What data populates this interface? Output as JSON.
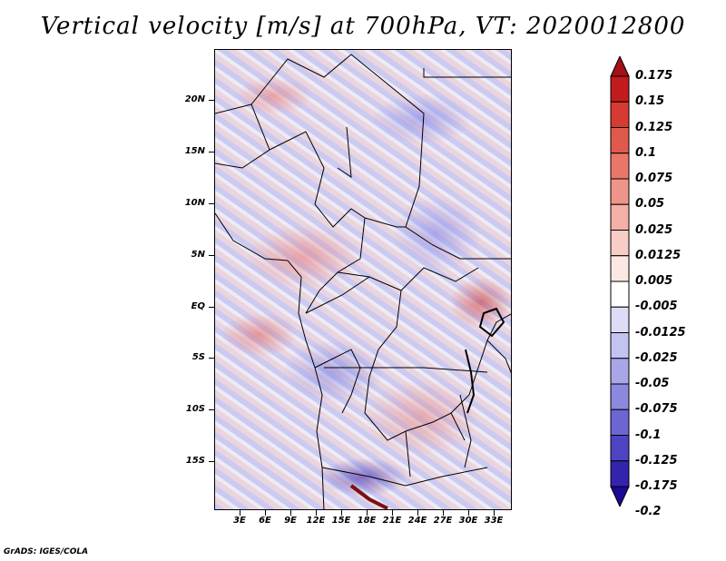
{
  "title": "Vertical velocity [m/s] at 700hPa, VT: 2020012800",
  "map": {
    "lat_labels": [
      "20N",
      "15N",
      "10N",
      "5N",
      "EQ",
      "5S",
      "10S",
      "15S"
    ],
    "lon_labels": [
      "3E",
      "6E",
      "9E",
      "12E",
      "15E",
      "18E",
      "21E",
      "24E",
      "27E",
      "30E",
      "33E"
    ]
  },
  "colorbar": {
    "labels": [
      "0.175",
      "0.15",
      "0.125",
      "0.1",
      "0.075",
      "0.05",
      "0.025",
      "0.0125",
      "0.005",
      "-0.005",
      "-0.0125",
      "-0.025",
      "-0.05",
      "-0.075",
      "-0.1",
      "-0.125",
      "-0.175",
      "-0.2"
    ],
    "colors": [
      "#a50f15",
      "#c21b1e",
      "#d63a32",
      "#e05a4c",
      "#e8776a",
      "#ef9488",
      "#f4b0a6",
      "#f8cdc5",
      "#fce7e3",
      "#ffffff",
      "#dcdcf6",
      "#c4c2f0",
      "#a9a6e8",
      "#8d88df",
      "#6d66d2",
      "#4e44c2",
      "#3324ad",
      "#1c0896"
    ]
  },
  "credit": "GrADS: IGES/COLA"
}
